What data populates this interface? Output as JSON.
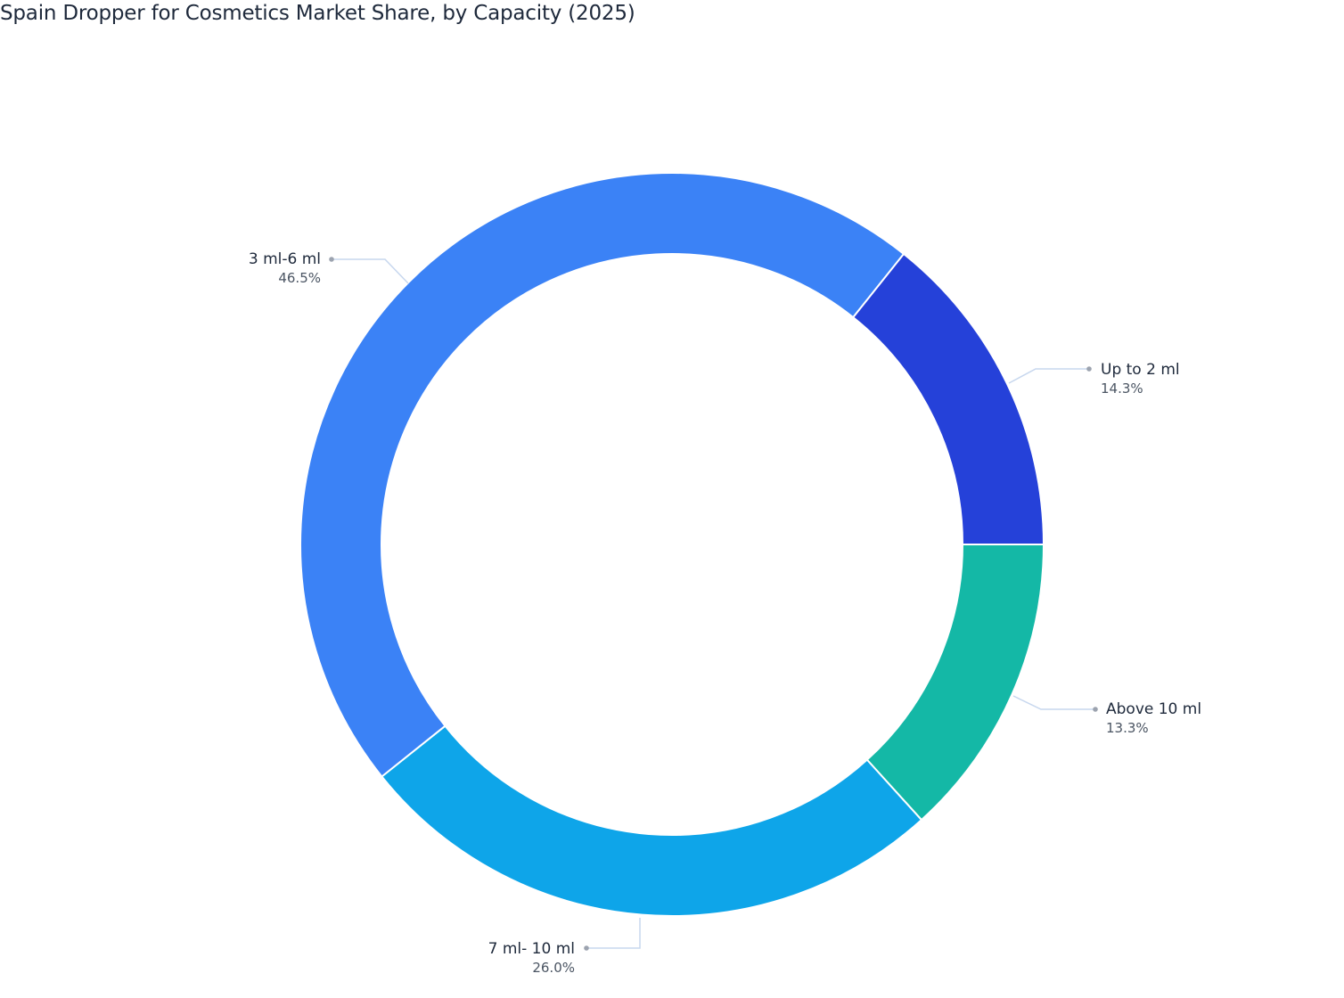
{
  "title": "Spain Dropper for Cosmetics Market Share, by Capacity (2025)",
  "chart_data": {
    "type": "pie",
    "subtype": "donut",
    "title": "Spain Dropper for Cosmetics Market Share, by Capacity (2025)",
    "categories": [
      "Above 10 ml",
      "7 ml- 10 ml",
      "3 ml-6 ml",
      "Up to 2 ml"
    ],
    "values": [
      13.3,
      26.0,
      46.5,
      14.3
    ],
    "unit": "%",
    "colors": [
      "#14b8a6",
      "#0ea5e9",
      "#3b82f6",
      "#2541d9"
    ],
    "start_angle": "3 o'clock",
    "direction": "clockwise",
    "legend": "none (outside labels with leader lines)"
  },
  "labels": {
    "up_to_2": {
      "name": "Up to 2 ml",
      "pct": "14.3%"
    },
    "above_10": {
      "name": "Above 10 ml",
      "pct": "13.3%"
    },
    "ml_7_10": {
      "name": "7 ml- 10 ml",
      "pct": "26.0%"
    },
    "ml_3_6": {
      "name": "3 ml-6 ml",
      "pct": "46.5%"
    }
  }
}
